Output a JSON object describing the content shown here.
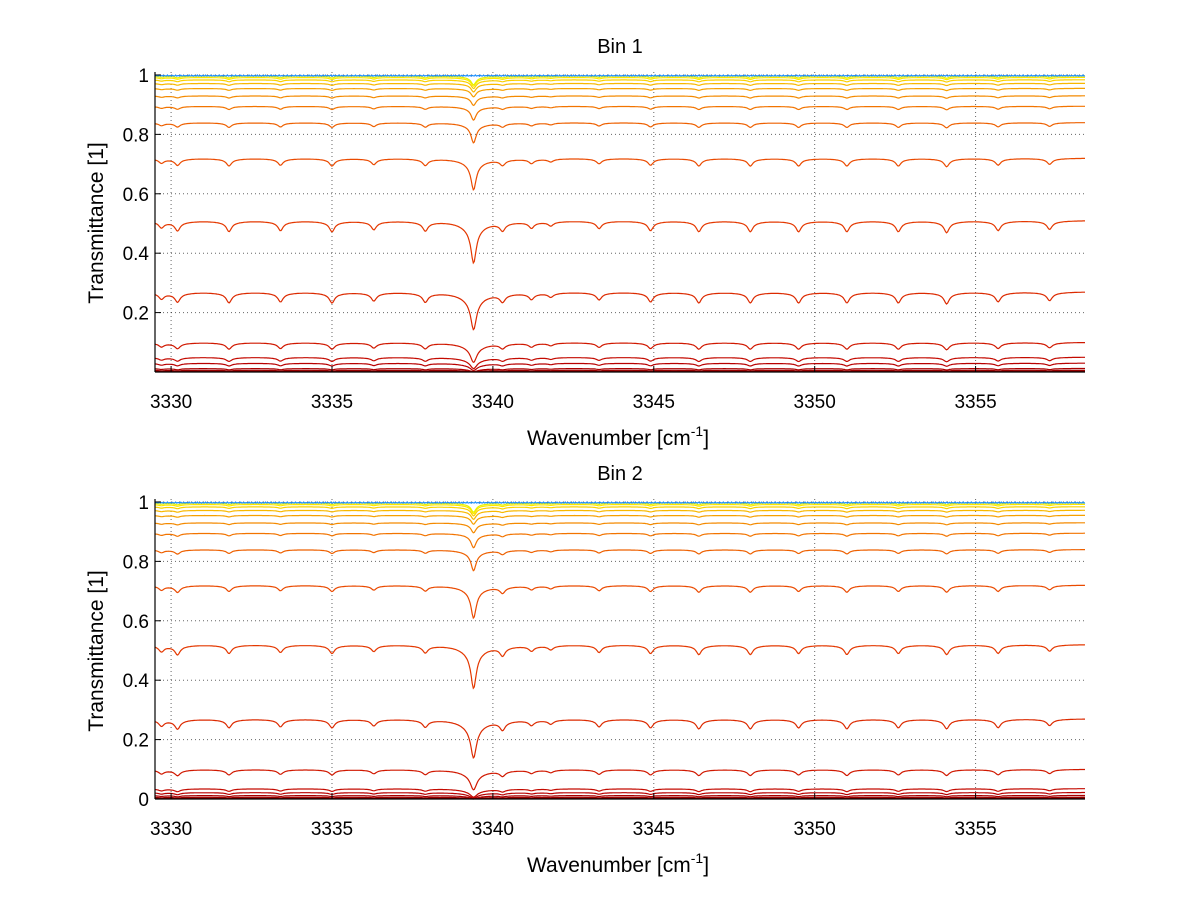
{
  "chart_data": [
    {
      "type": "line",
      "title": "Bin 1",
      "xlabel": "Wavenumber [cm",
      "xlabel_sup": "-1",
      "xlabel_suffix": "]",
      "ylabel": "Transmittance [1]",
      "xlim": [
        3329.5,
        3358.4
      ],
      "ylim": [
        0,
        1.01
      ],
      "xticks": [
        3330,
        3335,
        3340,
        3345,
        3350,
        3355
      ],
      "yticks": [
        0.2,
        0.4,
        0.6,
        0.8,
        1
      ],
      "ytick_labels": [
        "0.2",
        "0.4",
        "0.6",
        "0.8",
        "1"
      ],
      "grid": true,
      "colormap": "jet",
      "line_x": [
        3329.5,
        3358.4
      ],
      "absorption_lines": [
        {
          "center": 3329.7,
          "depth": 0.3
        },
        {
          "center": 3330.2,
          "depth": 0.45
        },
        {
          "center": 3331.8,
          "depth": 0.5
        },
        {
          "center": 3333.4,
          "depth": 0.45
        },
        {
          "center": 3335.0,
          "depth": 0.5
        },
        {
          "center": 3336.3,
          "depth": 0.4
        },
        {
          "center": 3337.9,
          "depth": 0.45
        },
        {
          "center": 3339.4,
          "depth": 2.2
        },
        {
          "center": 3340.3,
          "depth": 0.4
        },
        {
          "center": 3341.2,
          "depth": 0.3
        },
        {
          "center": 3341.8,
          "depth": 0.2
        },
        {
          "center": 3343.3,
          "depth": 0.35
        },
        {
          "center": 3344.9,
          "depth": 0.45
        },
        {
          "center": 3346.4,
          "depth": 0.5
        },
        {
          "center": 3348.0,
          "depth": 0.5
        },
        {
          "center": 3349.5,
          "depth": 0.5
        },
        {
          "center": 3351.0,
          "depth": 0.5
        },
        {
          "center": 3352.6,
          "depth": 0.5
        },
        {
          "center": 3354.1,
          "depth": 0.55
        },
        {
          "center": 3355.7,
          "depth": 0.45
        },
        {
          "center": 3357.3,
          "depth": 0.4
        }
      ],
      "series": [
        {
          "baseline": 0.003,
          "color": "#8b0000"
        },
        {
          "baseline": 0.006,
          "color": "#9a0000"
        },
        {
          "baseline": 0.012,
          "color": "#aa0000"
        },
        {
          "baseline": 0.03,
          "color": "#b80000"
        },
        {
          "baseline": 0.05,
          "color": "#c40a00"
        },
        {
          "baseline": 0.1,
          "color": "#d01800"
        },
        {
          "baseline": 0.27,
          "color": "#dc2a00"
        },
        {
          "baseline": 0.51,
          "color": "#e43800"
        },
        {
          "baseline": 0.72,
          "color": "#ea4a00"
        },
        {
          "baseline": 0.84,
          "color": "#ee6000"
        },
        {
          "baseline": 0.895,
          "color": "#f27400"
        },
        {
          "baseline": 0.93,
          "color": "#f48a00"
        },
        {
          "baseline": 0.955,
          "color": "#f6a000"
        },
        {
          "baseline": 0.972,
          "color": "#f8b800"
        },
        {
          "baseline": 0.984,
          "color": "#fad000"
        },
        {
          "baseline": 0.992,
          "color": "#fce800"
        },
        {
          "baseline": 0.997,
          "color": "#e8f200"
        },
        {
          "baseline": 1.0,
          "color": "#1e90ff"
        }
      ]
    },
    {
      "type": "line",
      "title": "Bin 2",
      "xlabel": "Wavenumber [cm",
      "xlabel_sup": "-1",
      "xlabel_suffix": "]",
      "ylabel": "Transmittance [1]",
      "xlim": [
        3329.5,
        3358.4
      ],
      "ylim": [
        0,
        1.01
      ],
      "xticks": [
        3330,
        3335,
        3340,
        3345,
        3350,
        3355
      ],
      "yticks": [
        0,
        0.2,
        0.4,
        0.6,
        0.8,
        1
      ],
      "ytick_labels": [
        "0",
        "0.2",
        "0.4",
        "0.6",
        "0.8",
        "1"
      ],
      "grid": true,
      "colormap": "jet",
      "line_x": [
        3329.5,
        3358.4
      ],
      "absorption_lines": [
        {
          "center": 3329.7,
          "depth": 0.3
        },
        {
          "center": 3330.2,
          "depth": 0.45
        },
        {
          "center": 3331.8,
          "depth": 0.4
        },
        {
          "center": 3333.4,
          "depth": 0.35
        },
        {
          "center": 3335.0,
          "depth": 0.4
        },
        {
          "center": 3336.3,
          "depth": 0.3
        },
        {
          "center": 3337.9,
          "depth": 0.35
        },
        {
          "center": 3339.4,
          "depth": 2.3
        },
        {
          "center": 3340.3,
          "depth": 0.45
        },
        {
          "center": 3341.2,
          "depth": 0.25
        },
        {
          "center": 3341.8,
          "depth": 0.2
        },
        {
          "center": 3343.3,
          "depth": 0.35
        },
        {
          "center": 3344.9,
          "depth": 0.4
        },
        {
          "center": 3346.4,
          "depth": 0.45
        },
        {
          "center": 3348.0,
          "depth": 0.45
        },
        {
          "center": 3349.5,
          "depth": 0.4
        },
        {
          "center": 3351.0,
          "depth": 0.45
        },
        {
          "center": 3352.6,
          "depth": 0.4
        },
        {
          "center": 3354.1,
          "depth": 0.45
        },
        {
          "center": 3355.7,
          "depth": 0.4
        },
        {
          "center": 3357.3,
          "depth": 0.3
        }
      ],
      "series": [
        {
          "baseline": 0.003,
          "color": "#8b0000"
        },
        {
          "baseline": 0.006,
          "color": "#9a0000"
        },
        {
          "baseline": 0.012,
          "color": "#aa0000"
        },
        {
          "baseline": 0.022,
          "color": "#b80000"
        },
        {
          "baseline": 0.035,
          "color": "#c40a00"
        },
        {
          "baseline": 0.1,
          "color": "#d01800"
        },
        {
          "baseline": 0.27,
          "color": "#dc2a00"
        },
        {
          "baseline": 0.52,
          "color": "#e43800"
        },
        {
          "baseline": 0.72,
          "color": "#ea4a00"
        },
        {
          "baseline": 0.84,
          "color": "#ee6000"
        },
        {
          "baseline": 0.895,
          "color": "#f27400"
        },
        {
          "baseline": 0.93,
          "color": "#f48a00"
        },
        {
          "baseline": 0.955,
          "color": "#f6a000"
        },
        {
          "baseline": 0.972,
          "color": "#f8b800"
        },
        {
          "baseline": 0.984,
          "color": "#fad000"
        },
        {
          "baseline": 0.992,
          "color": "#fce800"
        },
        {
          "baseline": 0.997,
          "color": "#e8f200"
        },
        {
          "baseline": 1.0,
          "color": "#1e90ff"
        }
      ]
    }
  ]
}
